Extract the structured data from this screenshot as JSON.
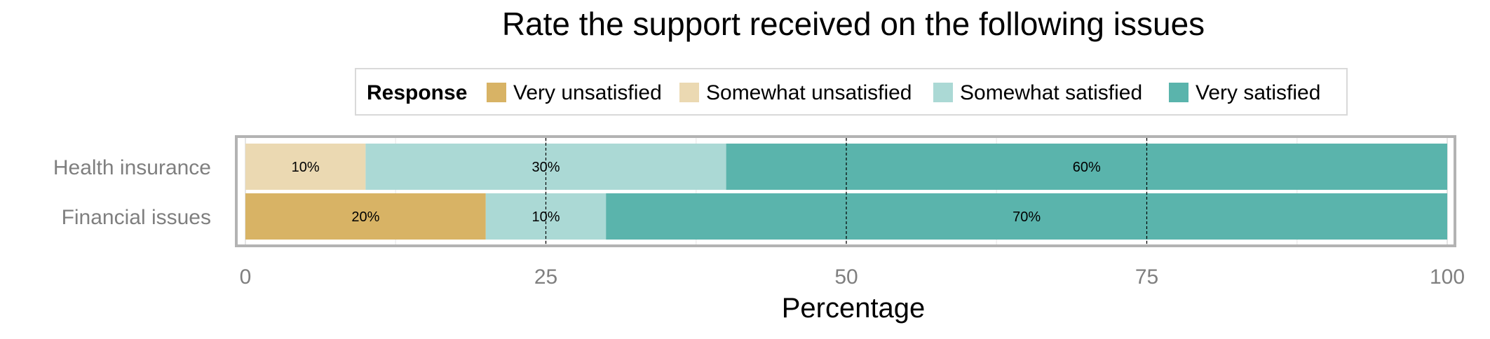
{
  "chart_data": {
    "type": "bar",
    "orientation": "horizontal",
    "stacked": true,
    "title": "Rate the support received on the following issues",
    "xlabel": "Percentage",
    "ylabel": "",
    "xlim": [
      0,
      100
    ],
    "xticks": [
      0,
      25,
      50,
      75,
      100
    ],
    "grid": true,
    "legend_title": "Response",
    "legend_position": "top",
    "categories": [
      "Health insurance",
      "Financial issues"
    ],
    "series": [
      {
        "name": "Very unsatisfied",
        "color": "#d8b365",
        "values": [
          0,
          20
        ],
        "labels": [
          "",
          "20%"
        ]
      },
      {
        "name": "Somewhat unsatisfied",
        "color": "#ebd9b2",
        "values": [
          10,
          0
        ],
        "labels": [
          "10%",
          ""
        ]
      },
      {
        "name": "Somewhat satisfied",
        "color": "#abd9d5",
        "values": [
          30,
          10
        ],
        "labels": [
          "30%",
          "10%"
        ]
      },
      {
        "name": "Very satisfied",
        "color": "#5ab4ac",
        "values": [
          60,
          70
        ],
        "labels": [
          "60%",
          "70%"
        ]
      }
    ]
  }
}
